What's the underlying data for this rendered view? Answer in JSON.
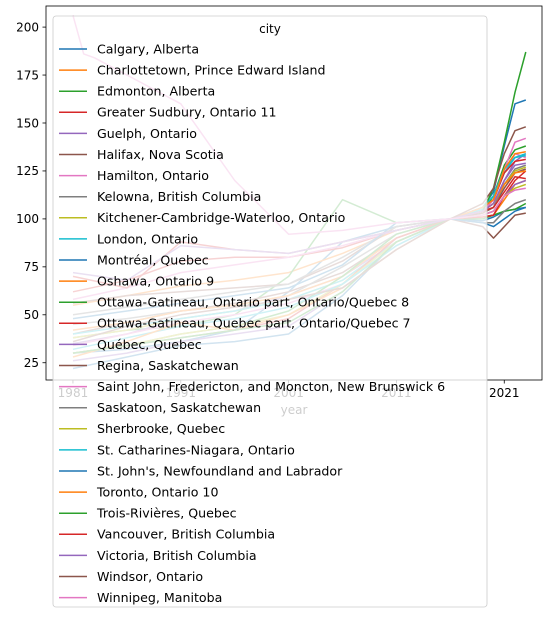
{
  "chart_data": {
    "type": "line",
    "title": "",
    "xlabel": "year",
    "ylabel": "",
    "xlim": [
      1978.5,
      2024.5
    ],
    "ylim": [
      16,
      211
    ],
    "xticks": [
      1981,
      1991,
      2001,
      2011,
      2021
    ],
    "yticks": [
      25,
      50,
      75,
      100,
      125,
      150,
      175,
      200
    ],
    "xtick_labels": [
      "1981",
      "1991",
      "2001",
      "2011",
      "2021"
    ],
    "ytick_labels": [
      "25",
      "50",
      "75",
      "100",
      "125",
      "150",
      "175",
      "200"
    ],
    "grid": false,
    "legend": {
      "title": "city",
      "placement": "upper-left"
    },
    "note": "",
    "series": [
      {
        "name": "Calgary, Alberta",
        "color": "#1f77b4",
        "x": [
          1981,
          1986,
          1991,
          1996,
          2001,
          2006,
          2011,
          2016,
          2019,
          2020,
          2021,
          2022,
          2023
        ],
        "values": [
          30,
          32,
          36,
          42,
          62,
          88,
          96,
          100,
          99,
          101,
          104,
          105,
          106
        ]
      },
      {
        "name": "Charlottetown, Prince Edward Island",
        "color": "#ff7f0e",
        "x": [
          1981,
          1986,
          1991,
          1996,
          2001,
          2006,
          2011,
          2016,
          2019,
          2020,
          2021,
          2022,
          2023
        ],
        "values": [
          55,
          60,
          65,
          68,
          72,
          82,
          94,
          100,
          101,
          102,
          110,
          118,
          120
        ]
      },
      {
        "name": "Edmonton, Alberta",
        "color": "#2ca02c",
        "x": [
          1981,
          1986,
          1991,
          1996,
          2001,
          2006,
          2011,
          2016,
          2019,
          2020,
          2021,
          2022,
          2023
        ],
        "values": [
          38,
          42,
          44,
          50,
          70,
          110,
          98,
          100,
          100,
          102,
          104,
          105,
          108
        ]
      },
      {
        "name": "Greater Sudbury, Ontario 11",
        "color": "#d62728",
        "x": [
          1981,
          1986,
          1991,
          1996,
          2001,
          2006,
          2011,
          2016,
          2019,
          2020,
          2021,
          2022,
          2023
        ],
        "values": [
          62,
          68,
          78,
          80,
          80,
          85,
          94,
          100,
          101,
          102,
          112,
          120,
          125
        ]
      },
      {
        "name": "Guelph, Ontario",
        "color": "#9467bd",
        "x": [
          1981,
          1986,
          1991,
          1996,
          2001,
          2006,
          2011,
          2016,
          2019,
          2020,
          2021,
          2022,
          2023
        ],
        "values": [
          35,
          40,
          48,
          52,
          60,
          70,
          88,
          100,
          104,
          108,
          120,
          130,
          134
        ]
      },
      {
        "name": "Halifax, Nova Scotia",
        "color": "#8c564b",
        "x": [
          1981,
          1986,
          1991,
          1996,
          2001,
          2006,
          2011,
          2016,
          2019,
          2020,
          2021,
          2022,
          2023
        ],
        "values": [
          40,
          46,
          52,
          56,
          62,
          72,
          90,
          100,
          103,
          106,
          116,
          124,
          126
        ]
      },
      {
        "name": "Hamilton, Ontario",
        "color": "#e377c2",
        "x": [
          1981,
          1986,
          1991,
          1996,
          2001,
          2006,
          2011,
          2016,
          2019,
          2020,
          2021,
          2022,
          2023
        ],
        "values": [
          34,
          40,
          46,
          50,
          56,
          66,
          86,
          100,
          106,
          110,
          124,
          134,
          132
        ]
      },
      {
        "name": "Kelowna, British Columbia",
        "color": "#7f7f7f",
        "x": [
          1981,
          1986,
          1991,
          1996,
          2001,
          2006,
          2011,
          2016,
          2019,
          2020,
          2021,
          2022,
          2023
        ],
        "values": [
          45,
          48,
          52,
          55,
          60,
          75,
          92,
          100,
          104,
          106,
          118,
          126,
          128
        ]
      },
      {
        "name": "Kitchener-Cambridge-Waterloo, Ontario",
        "color": "#bcbd22",
        "x": [
          1981,
          1986,
          1991,
          1996,
          2001,
          2006,
          2011,
          2016,
          2019,
          2020,
          2021,
          2022,
          2023
        ],
        "values": [
          38,
          42,
          48,
          52,
          58,
          68,
          88,
          100,
          104,
          108,
          118,
          125,
          127
        ]
      },
      {
        "name": "London, Ontario",
        "color": "#17becf",
        "x": [
          1981,
          1986,
          1991,
          1996,
          2001,
          2006,
          2011,
          2016,
          2019,
          2020,
          2021,
          2022,
          2023
        ],
        "values": [
          40,
          44,
          48,
          52,
          58,
          68,
          88,
          100,
          105,
          110,
          124,
          132,
          134
        ]
      },
      {
        "name": "Montréal, Quebec",
        "color": "#1f77b4",
        "x": [
          1981,
          1986,
          1991,
          1996,
          2001,
          2006,
          2011,
          2016,
          2019,
          2020,
          2021,
          2022,
          2023
        ],
        "values": [
          22,
          28,
          34,
          36,
          40,
          60,
          88,
          100,
          106,
          114,
          138,
          160,
          162
        ]
      },
      {
        "name": "Oshawa, Ontario 9",
        "color": "#ff7f0e",
        "x": [
          1981,
          1986,
          1991,
          1996,
          2001,
          2006,
          2011,
          2016,
          2019,
          2020,
          2021,
          2022,
          2023
        ],
        "values": [
          42,
          46,
          52,
          55,
          60,
          70,
          90,
          100,
          104,
          108,
          118,
          124,
          125
        ]
      },
      {
        "name": "Ottawa-Gatineau, Ontario part, Ontario/Quebec 8",
        "color": "#2ca02c",
        "x": [
          1981,
          1986,
          1991,
          1996,
          2001,
          2006,
          2011,
          2016,
          2019,
          2020,
          2021,
          2022,
          2023
        ],
        "values": [
          30,
          34,
          40,
          44,
          52,
          70,
          92,
          100,
          104,
          112,
          128,
          136,
          138
        ]
      },
      {
        "name": "Ottawa-Gatineau, Quebec part, Ontario/Quebec 7",
        "color": "#d62728",
        "x": [
          1981,
          1986,
          1991,
          1996,
          2001,
          2006,
          2011,
          2016,
          2019,
          2020,
          2021,
          2022,
          2023
        ],
        "values": [
          30,
          34,
          38,
          42,
          48,
          66,
          90,
          100,
          104,
          110,
          124,
          130,
          131
        ]
      },
      {
        "name": "Québec, Quebec",
        "color": "#9467bd",
        "x": [
          1981,
          1986,
          1991,
          1996,
          2001,
          2006,
          2011,
          2016,
          2019,
          2020,
          2021,
          2022,
          2023
        ],
        "values": [
          26,
          30,
          36,
          40,
          44,
          62,
          88,
          100,
          102,
          104,
          112,
          118,
          120
        ]
      },
      {
        "name": "Regina, Saskatchewan",
        "color": "#8c564b",
        "x": [
          1981,
          1986,
          1991,
          1996,
          2001,
          2006,
          2011,
          2016,
          2019,
          2020,
          2021,
          2022,
          2023
        ],
        "values": [
          56,
          60,
          62,
          64,
          66,
          78,
          96,
          100,
          96,
          90,
          96,
          102,
          103
        ]
      },
      {
        "name": "Saint John, Fredericton, and Moncton, New Brunswick 6",
        "color": "#e377c2",
        "x": [
          1981,
          1986,
          1991,
          1996,
          2001,
          2006,
          2011,
          2016,
          2019,
          2020,
          2021,
          2022,
          2023
        ],
        "values": [
          58,
          64,
          72,
          76,
          80,
          86,
          94,
          100,
          104,
          110,
          126,
          140,
          142
        ]
      },
      {
        "name": "Saskatoon, Saskatchewan",
        "color": "#7f7f7f",
        "x": [
          1981,
          1986,
          1991,
          1996,
          2001,
          2006,
          2011,
          2016,
          2019,
          2020,
          2021,
          2022,
          2023
        ],
        "values": [
          50,
          54,
          58,
          62,
          66,
          80,
          96,
          100,
          98,
          98,
          104,
          108,
          110
        ]
      },
      {
        "name": "Sherbrooke, Quebec",
        "color": "#bcbd22",
        "x": [
          1981,
          1986,
          1991,
          1996,
          2001,
          2006,
          2011,
          2016,
          2019,
          2020,
          2021,
          2022,
          2023
        ],
        "values": [
          30,
          34,
          40,
          44,
          50,
          66,
          88,
          100,
          102,
          104,
          112,
          116,
          118
        ]
      },
      {
        "name": "St. Catharines-Niagara, Ontario",
        "color": "#17becf",
        "x": [
          1981,
          1986,
          1991,
          1996,
          2001,
          2006,
          2011,
          2016,
          2019,
          2020,
          2021,
          2022,
          2023
        ],
        "values": [
          32,
          38,
          44,
          48,
          54,
          66,
          86,
          100,
          106,
          112,
          126,
          132,
          133
        ]
      },
      {
        "name": "St. John's, Newfoundland and Labrador",
        "color": "#1f77b4",
        "x": [
          1981,
          1986,
          1991,
          1996,
          2001,
          2006,
          2011,
          2016,
          2019,
          2020,
          2021,
          2022,
          2023
        ],
        "values": [
          48,
          52,
          56,
          60,
          64,
          76,
          98,
          100,
          98,
          96,
          100,
          104,
          106
        ]
      },
      {
        "name": "Toronto, Ontario 10",
        "color": "#ff7f0e",
        "x": [
          1981,
          1986,
          1991,
          1996,
          2001,
          2006,
          2011,
          2016,
          2019,
          2020,
          2021,
          2022,
          2023
        ],
        "values": [
          28,
          36,
          46,
          42,
          50,
          64,
          84,
          100,
          106,
          110,
          126,
          134,
          135
        ]
      },
      {
        "name": "Trois-Rivières, Quebec",
        "color": "#2ca02c",
        "x": [
          1981,
          1986,
          1991,
          1996,
          2001,
          2006,
          2011,
          2016,
          2019,
          2020,
          2021,
          2022,
          2023
        ],
        "values": [
          30,
          34,
          38,
          42,
          46,
          62,
          88,
          100,
          104,
          116,
          140,
          166,
          187
        ]
      },
      {
        "name": "Vancouver, British Columbia",
        "color": "#d62728",
        "x": [
          1981,
          1986,
          1991,
          1996,
          2001,
          2006,
          2011,
          2016,
          2019,
          2020,
          2021,
          2022,
          2023
        ],
        "values": [
          70,
          64,
          88,
          84,
          82,
          88,
          94,
          100,
          104,
          106,
          114,
          122,
          121
        ]
      },
      {
        "name": "Victoria, British Columbia",
        "color": "#9467bd",
        "x": [
          1981,
          1986,
          1991,
          1996,
          2001,
          2006,
          2011,
          2016,
          2019,
          2020,
          2021,
          2022,
          2023
        ],
        "values": [
          72,
          68,
          86,
          84,
          82,
          88,
          94,
          100,
          104,
          108,
          120,
          128,
          129
        ]
      },
      {
        "name": "Windsor, Ontario",
        "color": "#8c564b",
        "x": [
          1981,
          1986,
          1991,
          1996,
          2001,
          2006,
          2011,
          2016,
          2019,
          2020,
          2021,
          2022,
          2023
        ],
        "values": [
          36,
          44,
          50,
          54,
          58,
          64,
          84,
          100,
          108,
          116,
          134,
          146,
          148
        ]
      },
      {
        "name": "Winnipeg, Manitoba",
        "color": "#e377c2",
        "x": [
          1981,
          1982,
          1983,
          1986,
          1991,
          1996,
          2001,
          2006,
          2011,
          2016,
          2019,
          2020,
          2021,
          2022,
          2023
        ],
        "values": [
          206,
          186,
          184,
          175,
          160,
          120,
          92,
          94,
          98,
          100,
          102,
          104,
          112,
          115,
          116
        ]
      }
    ]
  }
}
